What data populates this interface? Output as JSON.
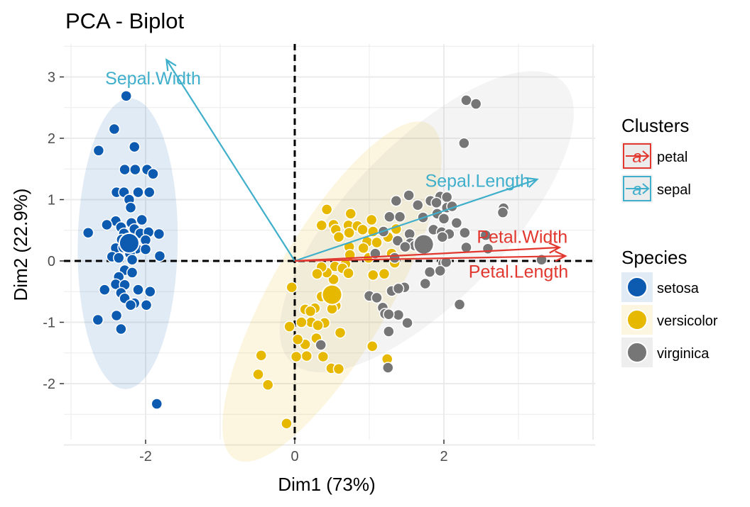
{
  "chart_data": {
    "type": "scatter",
    "title": "PCA - Biplot",
    "xlabel": "Dim1 (73%)",
    "ylabel": "Dim2 (22.9%)",
    "xlim": [
      -3,
      4
    ],
    "ylim": [
      -3,
      3.5
    ],
    "x_ticks": [
      -2,
      0,
      2
    ],
    "y_ticks": [
      -2,
      -1,
      0,
      1,
      2,
      3
    ],
    "x_tick_labels": [
      "-2",
      "0",
      "2"
    ],
    "y_tick_labels": [
      "-2",
      "-1",
      "0",
      "1",
      "2",
      "3"
    ],
    "grid": true,
    "reference_lines": {
      "x": 0,
      "y": 0,
      "style": "dashed"
    },
    "legend_position": "right",
    "species": [
      {
        "name": "setosa",
        "color": "#0C5BB0",
        "centroid": [
          -2.22,
          0.29
        ],
        "points": [
          [
            -2.26,
            2.69
          ],
          [
            -2.42,
            2.15
          ],
          [
            -2.63,
            1.8
          ],
          [
            -2.15,
            1.86
          ],
          [
            -2.28,
            1.49
          ],
          [
            -2.14,
            1.49
          ],
          [
            -1.98,
            1.49
          ],
          [
            -1.9,
            1.42
          ],
          [
            -2.39,
            1.12
          ],
          [
            -2.29,
            1.12
          ],
          [
            -2.1,
            1.12
          ],
          [
            -1.95,
            1.12
          ],
          [
            -2.22,
            1.0
          ],
          [
            -2.2,
            0.87
          ],
          [
            -2.4,
            0.65
          ],
          [
            -2.19,
            0.62
          ],
          [
            -2.05,
            0.67
          ],
          [
            -2.52,
            0.59
          ],
          [
            -2.33,
            0.55
          ],
          [
            -2.15,
            0.52
          ],
          [
            -2.29,
            0.45
          ],
          [
            -2.07,
            0.45
          ],
          [
            -1.96,
            0.47
          ],
          [
            -1.82,
            0.44
          ],
          [
            -2.77,
            0.46
          ],
          [
            -2.32,
            0.35
          ],
          [
            -2.0,
            0.34
          ],
          [
            -2.4,
            0.21
          ],
          [
            -2.3,
            0.22
          ],
          [
            -2.12,
            0.2
          ],
          [
            -2.0,
            0.19
          ],
          [
            -2.45,
            0.07
          ],
          [
            -2.21,
            0.12
          ],
          [
            -2.36,
            0.05
          ],
          [
            -1.81,
            0.08
          ],
          [
            -2.18,
            0.02
          ],
          [
            -2.28,
            -0.15
          ],
          [
            -2.36,
            -0.26
          ],
          [
            -2.18,
            -0.19
          ],
          [
            -2.4,
            -0.38
          ],
          [
            -2.28,
            -0.39
          ],
          [
            -2.55,
            -0.47
          ],
          [
            -2.1,
            -0.47
          ],
          [
            -1.94,
            -0.5
          ],
          [
            -2.33,
            -0.52
          ],
          [
            -2.28,
            -0.61
          ],
          [
            -2.15,
            -0.69
          ],
          [
            -1.99,
            -0.72
          ],
          [
            -2.2,
            -0.72
          ],
          [
            -2.39,
            -0.89
          ],
          [
            -2.64,
            -0.96
          ],
          [
            -2.33,
            -1.11
          ],
          [
            -1.85,
            -2.33
          ]
        ]
      },
      {
        "name": "versicolor",
        "color": "#E7B800",
        "centroid": [
          0.5,
          -0.55
        ],
        "points": [
          [
            0.43,
            0.84
          ],
          [
            0.75,
            0.77
          ],
          [
            1.03,
            0.67
          ],
          [
            0.52,
            0.59
          ],
          [
            0.72,
            0.58
          ],
          [
            0.84,
            0.57
          ],
          [
            0.36,
            0.58
          ],
          [
            0.91,
            0.51
          ],
          [
            0.73,
            0.46
          ],
          [
            0.55,
            0.51
          ],
          [
            1.05,
            0.48
          ],
          [
            1.36,
            0.52
          ],
          [
            0.97,
            0.31
          ],
          [
            1.25,
            0.39
          ],
          [
            0.59,
            0.39
          ],
          [
            1.1,
            0.3
          ],
          [
            0.73,
            0.23
          ],
          [
            0.92,
            0.21
          ],
          [
            0.74,
            0.1
          ],
          [
            1.3,
            0.12
          ],
          [
            1.34,
            -0.03
          ],
          [
            0.99,
            0.05
          ],
          [
            0.68,
            -0.05
          ],
          [
            0.54,
            -0.09
          ],
          [
            0.64,
            -0.12
          ],
          [
            0.72,
            -0.2
          ],
          [
            1.05,
            -0.23
          ],
          [
            1.2,
            -0.21
          ],
          [
            0.52,
            -0.3
          ],
          [
            0.43,
            -0.19
          ],
          [
            0.36,
            -0.1
          ],
          [
            0.3,
            -0.21
          ],
          [
            -0.04,
            -0.43
          ],
          [
            0.36,
            -0.58
          ],
          [
            0.27,
            -0.77
          ],
          [
            0.55,
            -0.73
          ],
          [
            0.5,
            -0.78
          ],
          [
            0.14,
            -0.79
          ],
          [
            0.21,
            -0.82
          ],
          [
            0.22,
            -1.0
          ],
          [
            0.4,
            -1.01
          ],
          [
            0.31,
            -1.05
          ],
          [
            0.61,
            -1.17
          ],
          [
            0.29,
            -1.26
          ],
          [
            0.09,
            -1.0
          ],
          [
            0.14,
            -1.36
          ],
          [
            0.04,
            -1.28
          ],
          [
            -0.07,
            -1.07
          ],
          [
            1.04,
            -1.39
          ],
          [
            0.16,
            -1.55
          ],
          [
            0.02,
            -1.56
          ],
          [
            0.38,
            -1.56
          ],
          [
            0.49,
            -1.75
          ],
          [
            0.59,
            -1.76
          ],
          [
            1.24,
            -1.6
          ],
          [
            -0.45,
            -1.54
          ],
          [
            -0.49,
            -1.85
          ],
          [
            -0.36,
            -2.02
          ],
          [
            -0.11,
            -2.65
          ]
        ]
      },
      {
        "name": "virginica",
        "color": "#767676",
        "centroid": [
          1.73,
          0.27
        ],
        "points": [
          [
            2.3,
            2.62
          ],
          [
            2.43,
            2.56
          ],
          [
            2.27,
            1.92
          ],
          [
            1.53,
            1.07
          ],
          [
            1.36,
            0.98
          ],
          [
            1.65,
            0.91
          ],
          [
            1.95,
            1.05
          ],
          [
            2.04,
            1.04
          ],
          [
            1.82,
            0.98
          ],
          [
            1.9,
            0.95
          ],
          [
            2.04,
            0.87
          ],
          [
            2.11,
            0.89
          ],
          [
            2.8,
            0.86
          ],
          [
            1.27,
            0.72
          ],
          [
            1.41,
            0.72
          ],
          [
            1.72,
            0.71
          ],
          [
            1.91,
            0.77
          ],
          [
            2.0,
            0.69
          ],
          [
            2.17,
            0.62
          ],
          [
            2.79,
            0.79
          ],
          [
            1.19,
            0.48
          ],
          [
            1.54,
            0.44
          ],
          [
            1.86,
            0.51
          ],
          [
            1.97,
            0.47
          ],
          [
            2.07,
            0.44
          ],
          [
            2.28,
            0.46
          ],
          [
            2.56,
            0.42
          ],
          [
            1.38,
            0.33
          ],
          [
            1.55,
            0.29
          ],
          [
            1.61,
            0.25
          ],
          [
            1.48,
            0.23
          ],
          [
            1.98,
            0.39
          ],
          [
            2.3,
            0.22
          ],
          [
            2.59,
            0.2
          ],
          [
            3.31,
            0.02
          ],
          [
            1.08,
            0.12
          ],
          [
            1.34,
            0.05
          ],
          [
            1.99,
            -0.04
          ],
          [
            2.03,
            -0.02
          ],
          [
            1.81,
            -0.18
          ],
          [
            1.95,
            -0.16
          ],
          [
            1.75,
            -0.37
          ],
          [
            1.47,
            -0.43
          ],
          [
            1.3,
            -0.49
          ],
          [
            1.39,
            -0.45
          ],
          [
            1.0,
            -0.57
          ],
          [
            1.1,
            -0.6
          ],
          [
            1.18,
            -0.76
          ],
          [
            1.21,
            -0.86
          ],
          [
            1.27,
            -0.87
          ],
          [
            1.39,
            -0.88
          ],
          [
            1.26,
            -1.15
          ],
          [
            1.51,
            -1.01
          ],
          [
            1.26,
            -0.87
          ],
          [
            0.35,
            -1.37
          ],
          [
            1.25,
            -1.74
          ],
          [
            2.21,
            -0.71
          ]
        ]
      }
    ],
    "ellipses": [
      {
        "species": "setosa",
        "color": "#0C5BB0",
        "cx": -2.24,
        "cy": 0.28,
        "rx": 0.67,
        "ry": 2.37,
        "rotation": 1
      },
      {
        "species": "versicolor",
        "color": "#E7B800",
        "cx": 0.5,
        "cy": -0.5,
        "rx": 2.6,
        "ry": 0.96,
        "rotation": -60
      },
      {
        "species": "virginica",
        "color": "#A8A8A8",
        "cx": 1.77,
        "cy": 0.64,
        "rx": 2.62,
        "ry": 1.28,
        "rotation": -46
      }
    ],
    "variables": [
      {
        "name": "Sepal.Width",
        "cluster": "sepal",
        "x": -1.72,
        "y": 3.28,
        "label_x": -1.9,
        "label_y": 2.97,
        "anchor": "middle"
      },
      {
        "name": "Sepal.Length",
        "cluster": "sepal",
        "x": 3.25,
        "y": 1.33,
        "label_x": 2.45,
        "label_y": 1.3,
        "anchor": "middle"
      },
      {
        "name": "Petal.Width",
        "cluster": "petal",
        "x": 3.55,
        "y": 0.22,
        "label_x": 3.05,
        "label_y": 0.39,
        "anchor": "middle"
      },
      {
        "name": "Petal.Length",
        "cluster": "petal",
        "x": 3.63,
        "y": 0.08,
        "label_x": 3.0,
        "label_y": -0.18,
        "anchor": "middle"
      }
    ],
    "clusters": [
      {
        "name": "petal",
        "color": "#E1372F"
      },
      {
        "name": "sepal",
        "color": "#3FAFCB"
      }
    ]
  },
  "legend": {
    "clusters_title": "Clusters",
    "species_title": "Species",
    "key_glyph": "a"
  }
}
